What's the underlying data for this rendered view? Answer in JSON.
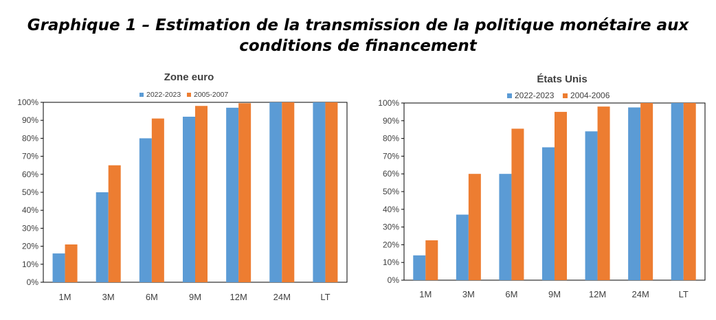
{
  "title": {
    "line1": "Graphique 1 – Estimation de la transmission de la politique monétaire aux",
    "line2": "conditions de financement"
  },
  "chart_data": [
    {
      "type": "bar",
      "title": "Zone euro",
      "categories": [
        "1M",
        "3M",
        "6M",
        "9M",
        "12M",
        "24M",
        "LT"
      ],
      "series": [
        {
          "name": "2022-2023",
          "color": "#5b9bd5",
          "values": [
            16,
            50,
            80,
            92,
            97,
            100,
            100
          ]
        },
        {
          "name": "2005-2007",
          "color": "#ed7d31",
          "values": [
            21,
            65,
            91,
            98,
            99.5,
            100,
            100
          ]
        }
      ],
      "y_ticks": [
        "0%",
        "10%",
        "20%",
        "30%",
        "40%",
        "50%",
        "60%",
        "70%",
        "80%",
        "90%",
        "100%"
      ],
      "ylim": [
        0,
        100
      ],
      "legend_position": "top",
      "grid": false
    },
    {
      "type": "bar",
      "title": "États Unis",
      "categories": [
        "1M",
        "3M",
        "6M",
        "9M",
        "12M",
        "24M",
        "LT"
      ],
      "series": [
        {
          "name": "2022-2023",
          "color": "#5b9bd5",
          "values": [
            14,
            37,
            60,
            75,
            84,
            97.5,
            100
          ]
        },
        {
          "name": "2004-2006",
          "color": "#ed7d31",
          "values": [
            22.5,
            60,
            85.5,
            95,
            98,
            100,
            100
          ]
        }
      ],
      "y_ticks": [
        "0%",
        "10%",
        "20%",
        "30%",
        "40%",
        "50%",
        "60%",
        "70%",
        "80%",
        "90%",
        "100%"
      ],
      "ylim": [
        0,
        100
      ],
      "legend_position": "top",
      "grid": false
    }
  ]
}
